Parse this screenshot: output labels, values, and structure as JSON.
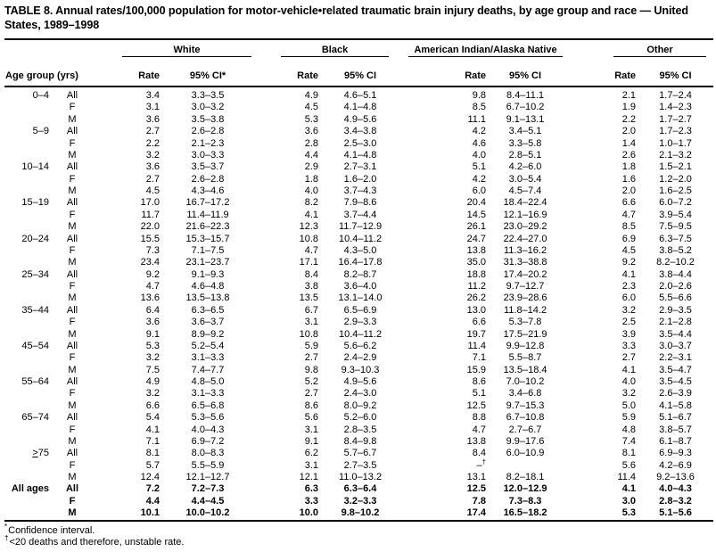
{
  "title": "TABLE 8. Annual rates/100,000 population for motor-vehicle•related traumatic brain injury deaths, by age group and race — United States, 1989–1998",
  "table": {
    "age_header": "Age group (yrs)",
    "groups": [
      {
        "name": "White",
        "rate": "Rate",
        "ci": "95% CI*"
      },
      {
        "name": "Black",
        "rate": "Rate",
        "ci": "95% CI"
      },
      {
        "name": "American Indian/Alaska Native",
        "rate": "Rate",
        "ci": "95% CI"
      },
      {
        "name": "Other",
        "rate": "Rate",
        "ci": "95% CI"
      }
    ],
    "rows": [
      {
        "age": "0–4",
        "sex": "All",
        "v": [
          "3.4",
          "3.3–3.5",
          "4.9",
          "4.6–5.1",
          "9.8",
          "8.4–11.1",
          "2.1",
          "1.7–2.4"
        ]
      },
      {
        "age": "",
        "sex": "F",
        "v": [
          "3.1",
          "3.0–3.2",
          "4.5",
          "4.1–4.8",
          "8.5",
          "6.7–10.2",
          "1.9",
          "1.4–2.3"
        ]
      },
      {
        "age": "",
        "sex": "M",
        "v": [
          "3.6",
          "3.5–3.8",
          "5.3",
          "4.9–5.6",
          "11.1",
          "9.1–13.1",
          "2.2",
          "1.7–2.7"
        ]
      },
      {
        "age": "5–9",
        "sex": "All",
        "v": [
          "2.7",
          "2.6–2.8",
          "3.6",
          "3.4–3.8",
          "4.2",
          "3.4–5.1",
          "2.0",
          "1.7–2.3"
        ]
      },
      {
        "age": "",
        "sex": "F",
        "v": [
          "2.2",
          "2.1–2.3",
          "2.8",
          "2.5–3.0",
          "4.6",
          "3.3–5.8",
          "1.4",
          "1.0–1.7"
        ]
      },
      {
        "age": "",
        "sex": "M",
        "v": [
          "3.2",
          "3.0–3.3",
          "4.4",
          "4.1–4.8",
          "4.0",
          "2.8–5.1",
          "2.6",
          "2.1–3.2"
        ]
      },
      {
        "age": "10–14",
        "sex": "All",
        "v": [
          "3.6",
          "3.5–3.7",
          "2.9",
          "2.7–3.1",
          "5.1",
          "4.2–6.0",
          "1.8",
          "1.5–2.1"
        ]
      },
      {
        "age": "",
        "sex": "F",
        "v": [
          "2.7",
          "2.6–2.8",
          "1.8",
          "1.6–2.0",
          "4.2",
          "3.0–5.4",
          "1.6",
          "1.2–2.0"
        ]
      },
      {
        "age": "",
        "sex": "M",
        "v": [
          "4.5",
          "4.3–4.6",
          "4.0",
          "3.7–4.3",
          "6.0",
          "4.5–7.4",
          "2.0",
          "1.6–2.5"
        ]
      },
      {
        "age": "15–19",
        "sex": "All",
        "v": [
          "17.0",
          "16.7–17.2",
          "8.2",
          "7.9–8.6",
          "20.4",
          "18.4–22.4",
          "6.6",
          "6.0–7.2"
        ]
      },
      {
        "age": "",
        "sex": "F",
        "v": [
          "11.7",
          "11.4–11.9",
          "4.1",
          "3.7–4.4",
          "14.5",
          "12.1–16.9",
          "4.7",
          "3.9–5.4"
        ]
      },
      {
        "age": "",
        "sex": "M",
        "v": [
          "22.0",
          "21.6–22.3",
          "12.3",
          "11.7–12.9",
          "26.1",
          "23.0–29.2",
          "8.5",
          "7.5–9.5"
        ]
      },
      {
        "age": "20–24",
        "sex": "All",
        "v": [
          "15.5",
          "15.3–15.7",
          "10.8",
          "10.4–11.2",
          "24.7",
          "22.4–27.0",
          "6.9",
          "6.3–7.5"
        ]
      },
      {
        "age": "",
        "sex": "F",
        "v": [
          "7.3",
          "7.1–7.5",
          "4.7",
          "4.3–5.0",
          "13.8",
          "11.3–16.2",
          "4.5",
          "3.8–5.2"
        ]
      },
      {
        "age": "",
        "sex": "M",
        "v": [
          "23.4",
          "23.1–23.7",
          "17.1",
          "16.4–17.8",
          "35.0",
          "31.3–38.8",
          "9.2",
          "8.2–10.2"
        ]
      },
      {
        "age": "25–34",
        "sex": "All",
        "v": [
          "9.2",
          "9.1–9.3",
          "8.4",
          "8.2–8.7",
          "18.8",
          "17.4–20.2",
          "4.1",
          "3.8–4.4"
        ]
      },
      {
        "age": "",
        "sex": "F",
        "v": [
          "4.7",
          "4.6–4.8",
          "3.8",
          "3.6–4.0",
          "11.2",
          "9.7–12.7",
          "2.3",
          "2.0–2.6"
        ]
      },
      {
        "age": "",
        "sex": "M",
        "v": [
          "13.6",
          "13.5–13.8",
          "13.5",
          "13.1–14.0",
          "26.2",
          "23.9–28.6",
          "6.0",
          "5.5–6.6"
        ]
      },
      {
        "age": "35–44",
        "sex": "All",
        "v": [
          "6.4",
          "6.3–6.5",
          "6.7",
          "6.5–6.9",
          "13.0",
          "11.8–14.2",
          "3.2",
          "2.9–3.5"
        ]
      },
      {
        "age": "",
        "sex": "F",
        "v": [
          "3.6",
          "3.6–3.7",
          "3.1",
          "2.9–3.3",
          "6.6",
          "5.3–7.8",
          "2.5",
          "2.1–2.8"
        ]
      },
      {
        "age": "",
        "sex": "M",
        "v": [
          "9.1",
          "8.9–9.2",
          "10.8",
          "10.4–11.2",
          "19.7",
          "17.5–21.9",
          "3.9",
          "3.5–4.4"
        ]
      },
      {
        "age": "45–54",
        "sex": "All",
        "v": [
          "5.3",
          "5.2–5.4",
          "5.9",
          "5.6–6.2",
          "11.4",
          "9.9–12.8",
          "3.3",
          "3.0–3.7"
        ]
      },
      {
        "age": "",
        "sex": "F",
        "v": [
          "3.2",
          "3.1–3.3",
          "2.7",
          "2.4–2.9",
          "7.1",
          "5.5–8.7",
          "2.7",
          "2.2–3.1"
        ]
      },
      {
        "age": "",
        "sex": "M",
        "v": [
          "7.5",
          "7.4–7.7",
          "9.8",
          "9.3–10.3",
          "15.9",
          "13.5–18.4",
          "4.1",
          "3.5–4.7"
        ]
      },
      {
        "age": "55–64",
        "sex": "All",
        "v": [
          "4.9",
          "4.8–5.0",
          "5.2",
          "4.9–5.6",
          "8.6",
          "7.0–10.2",
          "4.0",
          "3.5–4.5"
        ]
      },
      {
        "age": "",
        "sex": "F",
        "v": [
          "3.2",
          "3.1–3.3",
          "2.7",
          "2.4–3.0",
          "5.1",
          "3.4–6.8",
          "3.2",
          "2.6–3.9"
        ]
      },
      {
        "age": "",
        "sex": "M",
        "v": [
          "6.6",
          "6.5–6.8",
          "8.6",
          "8.0–9.2",
          "12.5",
          "9.7–15.3",
          "5.0",
          "4.1–5.8"
        ]
      },
      {
        "age": "65–74",
        "sex": "All",
        "v": [
          "5.4",
          "5.3–5.6",
          "5.6",
          "5.2–6.0",
          "8.8",
          "6.7–10.8",
          "5.9",
          "5.1–6.7"
        ]
      },
      {
        "age": "",
        "sex": "F",
        "v": [
          "4.1",
          "4.0–4.3",
          "3.1",
          "2.8–3.5",
          "4.7",
          "2.7–6.7",
          "4.8",
          "3.8–5.7"
        ]
      },
      {
        "age": "",
        "sex": "M",
        "v": [
          "7.1",
          "6.9–7.2",
          "9.1",
          "8.4–9.8",
          "13.8",
          "9.9–17.6",
          "7.4",
          "6.1–8.7"
        ]
      },
      {
        "age": ">75",
        "sex": "All",
        "u": true,
        "v": [
          "8.1",
          "8.0–8.3",
          "6.2",
          "5.7–6.7",
          "8.4",
          "6.0–10.9",
          "8.1",
          "6.9–9.3"
        ]
      },
      {
        "age": "",
        "sex": "F",
        "v": [
          "5.7",
          "5.5–5.9",
          "3.1",
          "2.7–3.5",
          "–†",
          "",
          "5.6",
          "4.2–6.9"
        ]
      },
      {
        "age": "",
        "sex": "M",
        "v": [
          "12.4",
          "12.1–12.7",
          "12.1",
          "11.0–13.2",
          "13.1",
          "8.2–18.1",
          "11.4",
          "9.2–13.6"
        ]
      },
      {
        "age": "All ages",
        "sex": "All",
        "b": true,
        "v": [
          "7.2",
          "7.2–7.3",
          "6.3",
          "6.3–6.4",
          "12.5",
          "12.0–12.9",
          "4.1",
          "4.0–4.3"
        ]
      },
      {
        "age": "",
        "sex": "F",
        "b": true,
        "v": [
          "4.4",
          "4.4–4.5",
          "3.3",
          "3.2–3.3",
          "7.8",
          "7.3–8.3",
          "3.0",
          "2.8–3.2"
        ]
      },
      {
        "age": "",
        "sex": "M",
        "b": true,
        "v": [
          "10.1",
          "10.0–10.2",
          "10.0",
          "9.8–10.2",
          "17.4",
          "16.5–18.2",
          "5.3",
          "5.1–5.6"
        ]
      }
    ]
  },
  "footnotes": [
    {
      "marker": "*",
      "text": "Confidence interval."
    },
    {
      "marker": "†",
      "text": "<20 deaths and therefore, unstable rate."
    }
  ]
}
